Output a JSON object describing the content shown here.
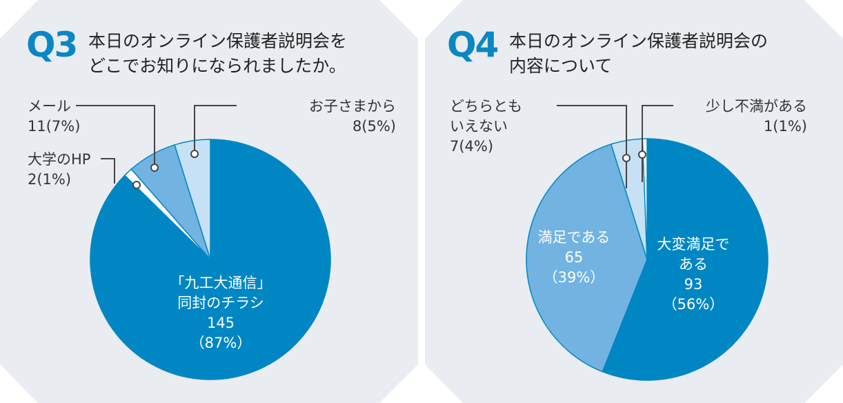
{
  "colors": {
    "dark": "#0086c3",
    "medium": "#72b3e1",
    "light": "#c6e1f5",
    "white": "#ffffff",
    "background": "#e9ecf0"
  },
  "chart_data": [
    {
      "type": "pie",
      "id": "Q3",
      "number": "Q3",
      "title": "本日のオンライン保護者説明会を\nどこでお知りになられましたか。",
      "start": "12 o'clock, clockwise",
      "categories": [
        "「九工大通信」同封のチラシ",
        "大学のHP",
        "メール",
        "お子さまから"
      ],
      "values": [
        145,
        2,
        11,
        8
      ],
      "percents": [
        87,
        1,
        7,
        5
      ],
      "labels": [
        {
          "name": "「九工大通信」\n同封のチラシ",
          "value": "145",
          "pct": "（87%）"
        },
        {
          "name": "大学のHP",
          "value": "2(1%)"
        },
        {
          "name": "メール",
          "value": "11(7%)"
        },
        {
          "name": "お子さまから",
          "value": "8(5%)"
        }
      ]
    },
    {
      "type": "pie",
      "id": "Q4",
      "number": "Q4",
      "title": "本日のオンライン保護者説明会の\n内容について",
      "start": "12 o'clock, clockwise",
      "categories": [
        "大変満足である",
        "満足である",
        "どちらともいえない",
        "少し不満がある"
      ],
      "values": [
        93,
        65,
        7,
        1
      ],
      "percents": [
        56,
        39,
        4,
        1
      ],
      "labels": [
        {
          "name": "大変満足で\nある",
          "value": "93",
          "pct": "（56%）"
        },
        {
          "name": "満足である",
          "value": "65",
          "pct": "（39%）"
        },
        {
          "name": "どちらとも\nいえない",
          "value": "7(4%)"
        },
        {
          "name": "少し不満がある",
          "value": "1(1%)"
        }
      ]
    }
  ]
}
